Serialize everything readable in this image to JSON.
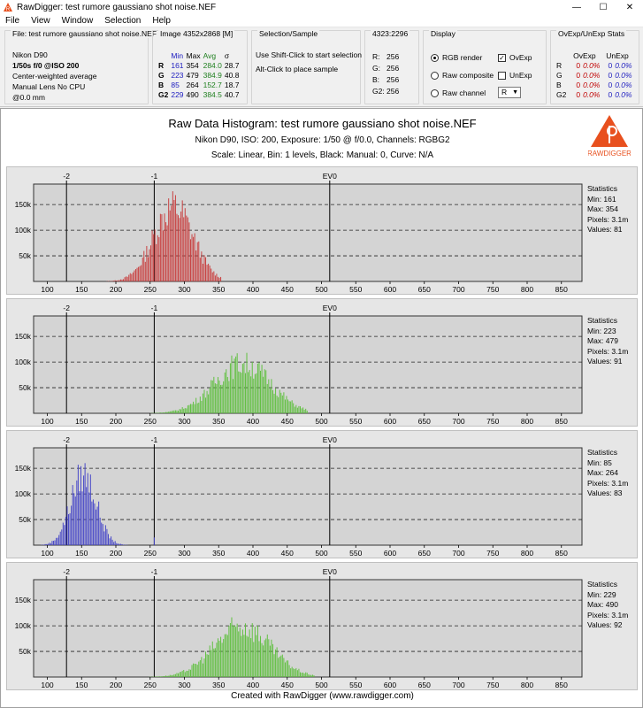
{
  "window": {
    "title": "RawDigger: test rumore gaussiano shot noise.NEF",
    "minimize_glyph": "—",
    "maximize_glyph": "☐",
    "close_glyph": "✕"
  },
  "menu": [
    "File",
    "View",
    "Window",
    "Selection",
    "Help"
  ],
  "file_panel": {
    "title": "File: test rumore gaussiano shot noise.NEF",
    "camera": "Nikon D90",
    "exposure": "1/50s f/0 @ISO 200",
    "metering": "Center-weighted average",
    "lens": "Manual Lens No CPU",
    "focal": "@0.0 mm"
  },
  "image_panel": {
    "title": "Image 4352x2868 [M]",
    "headers": [
      "",
      "Min",
      "Max",
      "Avg",
      "σ"
    ],
    "rows": [
      [
        "R",
        "161",
        "354",
        "284.0",
        "28.7"
      ],
      [
        "G",
        "223",
        "479",
        "384.9",
        "40.8"
      ],
      [
        "B",
        "85",
        "264",
        "152.7",
        "18.7"
      ],
      [
        "G2",
        "229",
        "490",
        "384.5",
        "40.7"
      ]
    ]
  },
  "selection_panel": {
    "title": "Selection/Sample",
    "line1": "Use Shift-Click to start selection",
    "line2": "Alt-Click to place sample"
  },
  "coord_panel": {
    "title": "4323:2296",
    "rows": [
      [
        "R:",
        "256"
      ],
      [
        "G:",
        "256"
      ],
      [
        "B:",
        "256"
      ],
      [
        "G2:",
        "256"
      ]
    ]
  },
  "display_panel": {
    "title": "Display",
    "rgb_render": "RGB render",
    "raw_composite": "Raw composite",
    "raw_channel": "Raw channel",
    "ovexp": "OvExp",
    "unexp": "UnExp",
    "channel_value": "R",
    "selected_mode": "RGB render",
    "ovexp_checked": true,
    "unexp_checked": false
  },
  "ovunexp_panel": {
    "title": "OvExp/UnExp Stats",
    "headers": [
      "",
      "OvExp",
      "",
      "UnExp",
      ""
    ],
    "rows": [
      [
        "R",
        "0",
        "0.0%",
        "0",
        "0.0%"
      ],
      [
        "G",
        "0",
        "0.0%",
        "0",
        "0.0%"
      ],
      [
        "B",
        "0",
        "0.0%",
        "0",
        "0.0%"
      ],
      [
        "G2",
        "0",
        "0.0%",
        "0",
        "0.0%"
      ]
    ]
  },
  "histogram": {
    "title": "Raw Data Histogram: test rumore gaussiano shot noise.NEF",
    "subtitle": "Nikon D90, ISO: 200, Exposure: 1/50 @ f/0.0, Channels: RGBG2",
    "scale_line": "Scale: Linear, Bin: 1 levels, Black: Manual: 0, Curve: N/A",
    "logo_text": "RAWDIGGER",
    "footer": "Created with RawDigger (www.rawdigger.com)"
  },
  "chart_data": [
    {
      "type": "bar",
      "channel": "R",
      "x_ticks": [
        100,
        150,
        200,
        250,
        300,
        350,
        400,
        450,
        500,
        550,
        600,
        650,
        700,
        750,
        800,
        850
      ],
      "xlim": [
        80,
        880
      ],
      "ylim": [
        0,
        190000
      ],
      "y_ticks": [
        50000,
        100000,
        150000
      ],
      "y_tick_labels": [
        "50k",
        "100k",
        "150k"
      ],
      "ev_markers": [
        {
          "label": "-2",
          "x": 128
        },
        {
          "label": "-1",
          "x": 256
        },
        {
          "label": "EV0",
          "x": 512
        }
      ],
      "color": "#c84040",
      "mean": 284.0,
      "sigma": 28.7,
      "peak": 176000,
      "min": 161,
      "max": 354,
      "stats": {
        "heading": "Statistics",
        "min": "Min: 161",
        "max": "Max: 354",
        "pixels": "Pixels: 3.1m",
        "values": "Values: 81"
      }
    },
    {
      "type": "bar",
      "channel": "G",
      "x_ticks": [
        100,
        150,
        200,
        250,
        300,
        350,
        400,
        450,
        500,
        550,
        600,
        650,
        700,
        750,
        800,
        850
      ],
      "xlim": [
        80,
        880
      ],
      "ylim": [
        0,
        190000
      ],
      "y_ticks": [
        50000,
        100000,
        150000
      ],
      "y_tick_labels": [
        "50k",
        "100k",
        "150k"
      ],
      "ev_markers": [
        {
          "label": "-2",
          "x": 128
        },
        {
          "label": "-1",
          "x": 256
        },
        {
          "label": "EV0",
          "x": 512
        }
      ],
      "color": "#60c040",
      "mean": 384.9,
      "sigma": 40.8,
      "peak": 118000,
      "min": 223,
      "max": 479,
      "stats": {
        "heading": "Statistics",
        "min": "Min: 223",
        "max": "Max: 479",
        "pixels": "Pixels: 3.1m",
        "values": "Values: 91"
      }
    },
    {
      "type": "bar",
      "channel": "B",
      "x_ticks": [
        100,
        150,
        200,
        250,
        300,
        350,
        400,
        450,
        500,
        550,
        600,
        650,
        700,
        750,
        800,
        850
      ],
      "xlim": [
        80,
        880
      ],
      "ylim": [
        0,
        190000
      ],
      "y_ticks": [
        50000,
        100000,
        150000
      ],
      "y_tick_labels": [
        "50k",
        "100k",
        "150k"
      ],
      "ev_markers": [
        {
          "label": "-2",
          "x": 128
        },
        {
          "label": "-1",
          "x": 256
        },
        {
          "label": "EV0",
          "x": 512
        }
      ],
      "color": "#4848c8",
      "mean": 152.7,
      "sigma": 18.7,
      "peak": 166000,
      "min": 85,
      "max": 264,
      "stats": {
        "heading": "Statistics",
        "min": "Min: 85",
        "max": "Max: 264",
        "pixels": "Pixels: 3.1m",
        "values": "Values: 83"
      }
    },
    {
      "type": "bar",
      "channel": "G2",
      "x_ticks": [
        100,
        150,
        200,
        250,
        300,
        350,
        400,
        450,
        500,
        550,
        600,
        650,
        700,
        750,
        800,
        850
      ],
      "xlim": [
        80,
        880
      ],
      "ylim": [
        0,
        190000
      ],
      "y_ticks": [
        50000,
        100000,
        150000
      ],
      "y_tick_labels": [
        "50k",
        "100k",
        "150k"
      ],
      "ev_markers": [
        {
          "label": "-2",
          "x": 128
        },
        {
          "label": "-1",
          "x": 256
        },
        {
          "label": "EV0",
          "x": 512
        }
      ],
      "color": "#60c040",
      "mean": 384.5,
      "sigma": 40.7,
      "peak": 120000,
      "min": 229,
      "max": 490,
      "stats": {
        "heading": "Statistics",
        "min": "Min: 229",
        "max": "Max: 490",
        "pixels": "Pixels: 3.1m",
        "values": "Values: 92"
      }
    }
  ]
}
